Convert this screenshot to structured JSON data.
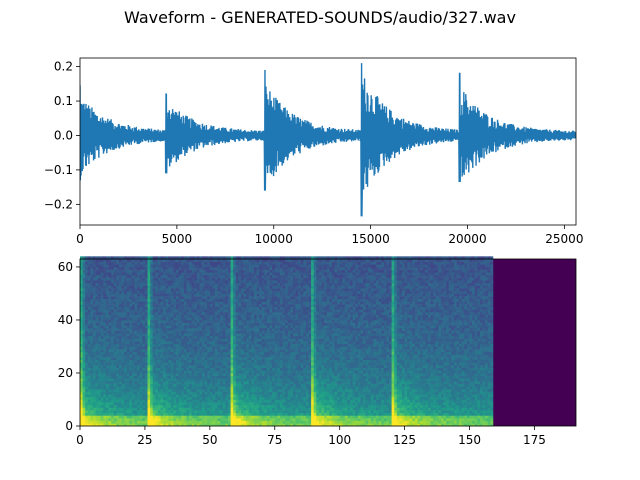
{
  "title": "Waveform - GENERATED-SOUNDS/audio/327.wav",
  "colors": {
    "waveform": "#1f77b4",
    "axis": "#000000",
    "spectrogram_empty": "#440154"
  },
  "chart_data": [
    {
      "type": "line",
      "panel": "waveform",
      "title": "",
      "xlabel": "",
      "ylabel": "",
      "xlim": [
        0,
        25600
      ],
      "ylim": [
        -0.26,
        0.225
      ],
      "xticks": [
        0,
        5000,
        10000,
        15000,
        20000,
        25000
      ],
      "xtick_labels": [
        "0",
        "5000",
        "10000",
        "15000",
        "20000",
        "25000"
      ],
      "yticks": [
        -0.2,
        -0.1,
        0.0,
        0.1,
        0.2
      ],
      "ytick_labels": [
        "−0.2",
        "−0.1",
        "0.0",
        "0.1",
        "0.2"
      ],
      "grid": false,
      "onsets": [
        {
          "x": 0,
          "peak_pos": 0.145,
          "peak_neg": -0.13
        },
        {
          "x": 4450,
          "peak_pos": 0.12,
          "peak_neg": -0.11
        },
        {
          "x": 9550,
          "peak_pos": 0.19,
          "peak_neg": -0.16
        },
        {
          "x": 14530,
          "peak_pos": 0.21,
          "peak_neg": -0.235
        },
        {
          "x": 19600,
          "peak_pos": 0.18,
          "peak_neg": -0.135
        }
      ],
      "decay_samples": 2600,
      "noise_floor": 0.012
    },
    {
      "type": "heatmap",
      "panel": "spectrogram",
      "title": "",
      "xlabel": "",
      "ylabel": "",
      "xlim": [
        0,
        191
      ],
      "ylim": [
        0,
        63
      ],
      "xticks": [
        0,
        25,
        50,
        75,
        100,
        125,
        150,
        175
      ],
      "xtick_labels": [
        "0",
        "25",
        "50",
        "75",
        "100",
        "125",
        "150",
        "175"
      ],
      "yticks": [
        0,
        20,
        40,
        60
      ],
      "ytick_labels": [
        "0",
        "20",
        "40",
        "60"
      ],
      "colormap": "viridis",
      "frames": 191,
      "bins": 64,
      "active_frames": 159,
      "onset_frames": [
        0,
        26,
        58,
        89,
        120
      ]
    }
  ]
}
